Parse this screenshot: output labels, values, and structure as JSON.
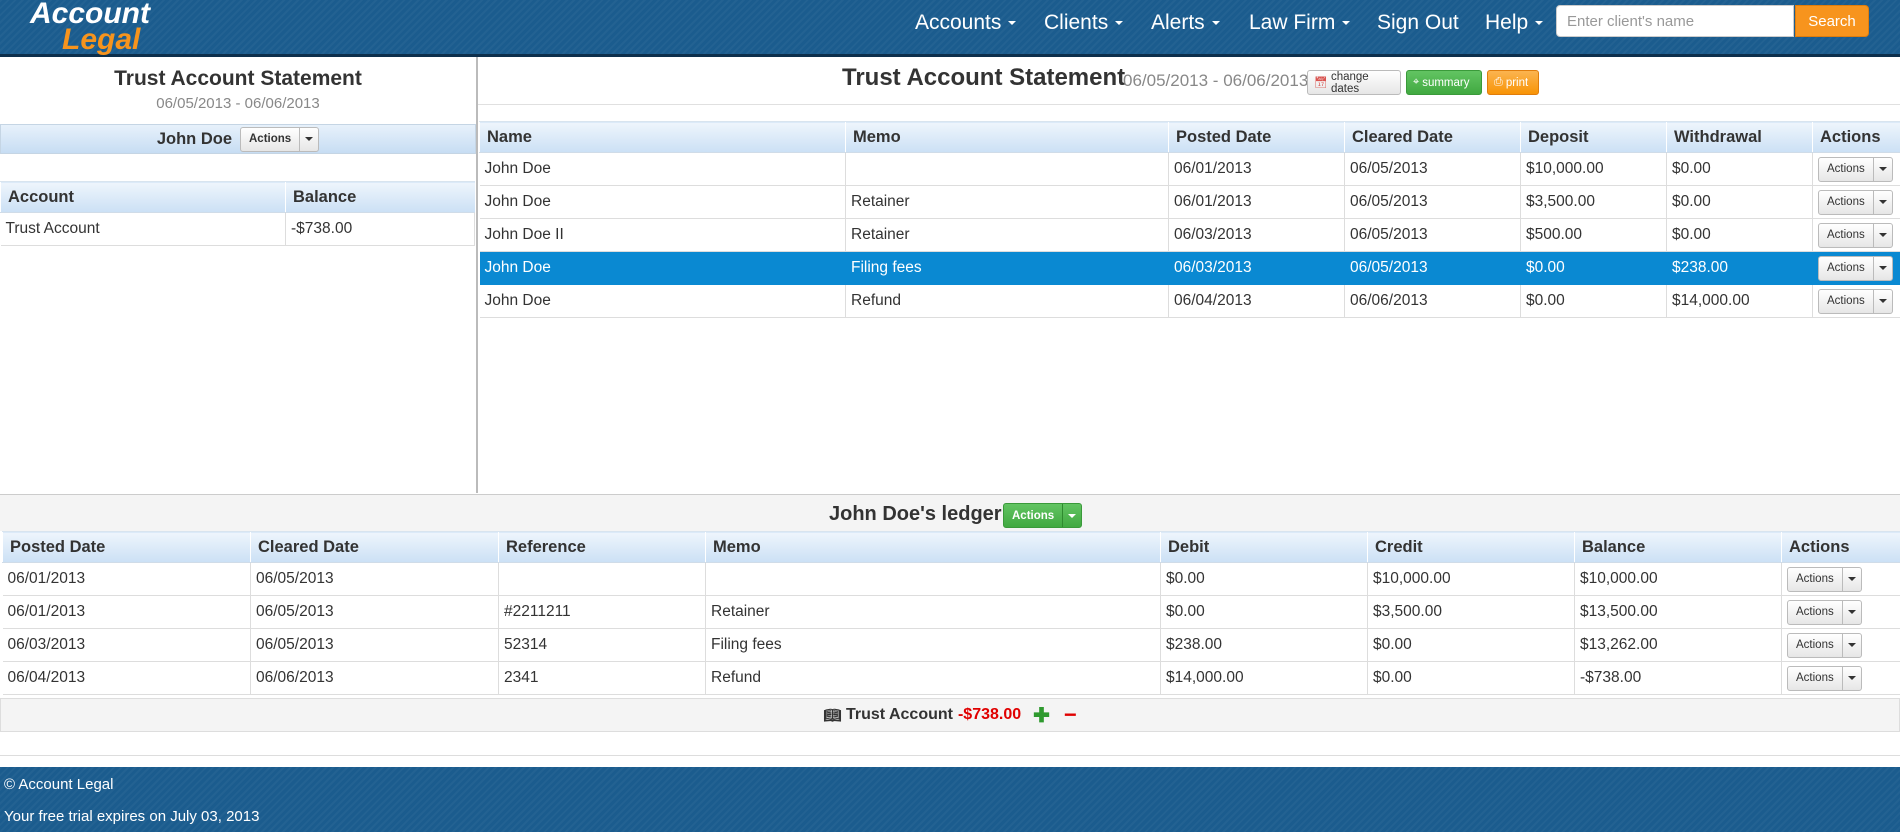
{
  "brand": {
    "line1": "Account",
    "line2": "Legal"
  },
  "nav": {
    "items": [
      {
        "label": "Accounts",
        "caret": true
      },
      {
        "label": "Clients",
        "caret": true
      },
      {
        "label": "Alerts",
        "caret": true
      },
      {
        "label": "Law Firm",
        "caret": true
      },
      {
        "label": "Sign Out",
        "caret": false
      },
      {
        "label": "Help",
        "caret": true
      }
    ],
    "search_placeholder": "Enter client's name",
    "search_button": "Search"
  },
  "left_panel": {
    "title": "Trust Account Statement",
    "dates": "06/05/2013 - 06/06/2013",
    "client_name": "John Doe",
    "actions_label": "Actions",
    "table": {
      "headers": [
        "Account",
        "Balance"
      ],
      "rows": [
        {
          "account": "Trust Account",
          "balance": "-$738.00"
        }
      ]
    }
  },
  "main": {
    "title": "Trust Account Statement",
    "dates": "06/05/2013 - 06/06/2013",
    "buttons": {
      "change_dates": "change dates",
      "summary": "summary",
      "print": "print"
    },
    "table": {
      "headers": [
        "Name",
        "Memo",
        "Posted Date",
        "Cleared Date",
        "Deposit",
        "Withdrawal",
        "Actions"
      ],
      "rows": [
        {
          "name": "John Doe",
          "memo": "",
          "posted": "06/01/2013",
          "cleared": "06/05/2013",
          "deposit": "$10,000.00",
          "withdrawal": "$0.00",
          "selected": false
        },
        {
          "name": "John Doe",
          "memo": "Retainer",
          "posted": "06/01/2013",
          "cleared": "06/05/2013",
          "deposit": "$3,500.00",
          "withdrawal": "$0.00",
          "selected": false
        },
        {
          "name": "John Doe II",
          "memo": "Retainer",
          "posted": "06/03/2013",
          "cleared": "06/05/2013",
          "deposit": "$500.00",
          "withdrawal": "$0.00",
          "selected": false
        },
        {
          "name": "John Doe",
          "memo": "Filing fees",
          "posted": "06/03/2013",
          "cleared": "06/05/2013",
          "deposit": "$0.00",
          "withdrawal": "$238.00",
          "selected": true
        },
        {
          "name": "John Doe",
          "memo": "Refund",
          "posted": "06/04/2013",
          "cleared": "06/06/2013",
          "deposit": "$0.00",
          "withdrawal": "$14,000.00",
          "selected": false
        }
      ],
      "row_action_label": "Actions"
    }
  },
  "ledger": {
    "title": "John Doe's ledger",
    "actions_label": "Actions",
    "table": {
      "headers": [
        "Posted Date",
        "Cleared Date",
        "Reference",
        "Memo",
        "Debit",
        "Credit",
        "Balance",
        "Actions"
      ],
      "rows": [
        {
          "posted": "06/01/2013",
          "cleared": "06/05/2013",
          "reference": "",
          "memo": "",
          "debit": "$0.00",
          "credit": "$10,000.00",
          "balance": "$10,000.00",
          "negative": false
        },
        {
          "posted": "06/01/2013",
          "cleared": "06/05/2013",
          "reference": "#2211211",
          "memo": "Retainer",
          "debit": "$0.00",
          "credit": "$3,500.00",
          "balance": "$13,500.00",
          "negative": false
        },
        {
          "posted": "06/03/2013",
          "cleared": "06/05/2013",
          "reference": "52314",
          "memo": "Filing fees",
          "debit": "$238.00",
          "credit": "$0.00",
          "balance": "$13,262.00",
          "negative": false
        },
        {
          "posted": "06/04/2013",
          "cleared": "06/06/2013",
          "reference": "2341",
          "memo": "Refund",
          "debit": "$14,000.00",
          "credit": "$0.00",
          "balance": "-$738.00",
          "negative": true
        }
      ],
      "row_action_label": "Actions"
    },
    "footer": {
      "account": "Trust Account",
      "balance": "-$738.00"
    }
  },
  "footer": {
    "copyright": "© Account Legal",
    "trial_notice": "Your free trial expires on July 03, 2013"
  },
  "colors": {
    "navbar": "#1b5c8e",
    "accent_orange": "#f7941d",
    "selected_row": "#0a89d2",
    "negative": "#e00000",
    "success_green": "#41a941"
  }
}
